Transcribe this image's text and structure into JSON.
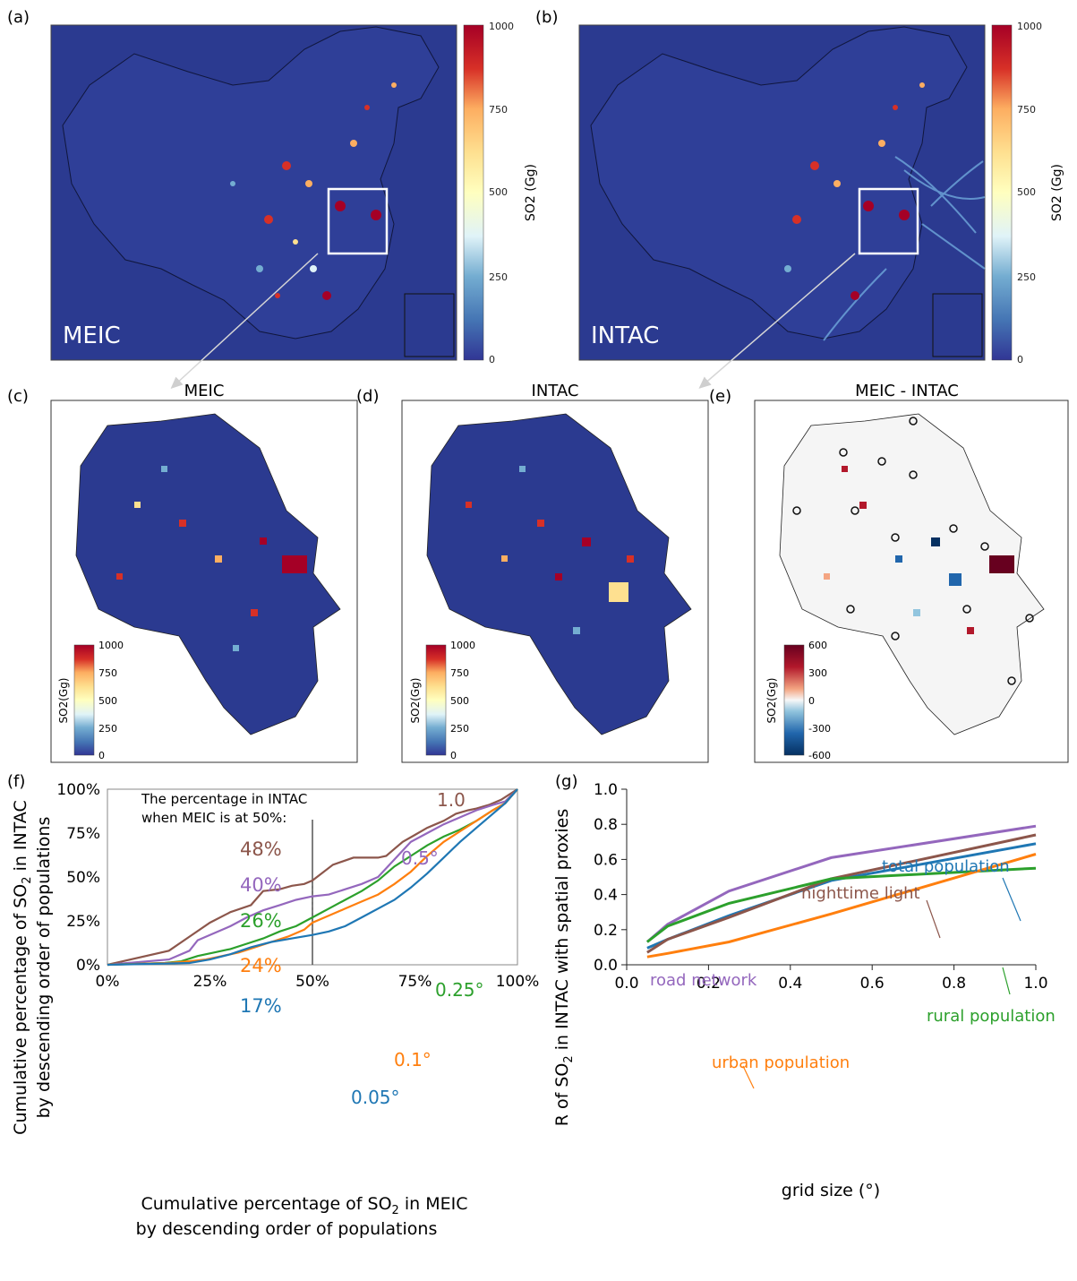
{
  "panels": {
    "a": {
      "tag": "(a)",
      "label": "MEIC"
    },
    "b": {
      "tag": "(b)",
      "label": "INTAC"
    },
    "c": {
      "tag": "(c)",
      "title": "MEIC"
    },
    "d": {
      "tag": "(d)",
      "title": "INTAC"
    },
    "e": {
      "tag": "(e)",
      "title": "MEIC - INTAC"
    },
    "f": {
      "tag": "(f)"
    },
    "g": {
      "tag": "(g)"
    }
  },
  "colorbars": {
    "map": {
      "label": "SO2 (Gg)",
      "ticks": [
        "1000",
        "750",
        "500",
        "250",
        "0"
      ]
    },
    "zoom": {
      "label": "SO2(Gg)",
      "ticks": [
        "1000",
        "750",
        "500",
        "250",
        "0"
      ]
    },
    "diff": {
      "label": "SO2(Gg)",
      "ticks": [
        "600",
        "300",
        "0",
        "-300",
        "-600"
      ]
    }
  },
  "colors": {
    "map_bg": "#2b3a90",
    "cmap_low": "#313695",
    "cmap_high": "#a50026",
    "res_1": "#8c564b",
    "res_05": "#9467bd",
    "res_025": "#2ca02c",
    "res_01": "#ff7f0e",
    "res_005": "#1f77b4"
  },
  "chart_data": [
    {
      "id": "f",
      "type": "line",
      "title": "",
      "xlabel": "Cumulative percentage of SO2 in MEIC by descending order of populations",
      "ylabel": "Cumulative percentage of SO2 in INTAC by descending order of populations",
      "xlim": [
        0,
        100
      ],
      "ylim": [
        0,
        100
      ],
      "xticks": [
        "0%",
        "25%",
        "50%",
        "75%",
        "100%"
      ],
      "yticks": [
        "0%",
        "25%",
        "50%",
        "75%",
        "100%"
      ],
      "annotation_title": [
        "The percentage in INTAC",
        "when MEIC is at 50%:"
      ],
      "annotation_values": [
        "48%",
        "40%",
        "26%",
        "24%",
        "17%"
      ],
      "series": [
        {
          "name": "1.0",
          "color": "#8c564b",
          "x": [
            0,
            15,
            20,
            25,
            30,
            35,
            38,
            42,
            45,
            48,
            50,
            55,
            60,
            62,
            66,
            68,
            70,
            72,
            75,
            78,
            80,
            82,
            85,
            88,
            90,
            93,
            96,
            100
          ],
          "y": [
            0,
            8,
            16,
            24,
            30,
            34,
            42,
            43,
            45,
            46,
            48,
            57,
            61,
            61,
            61,
            62,
            66,
            70,
            74,
            78,
            80,
            82,
            86,
            88,
            89,
            91,
            94,
            100
          ]
        },
        {
          "name": "0.5°",
          "color": "#9467bd",
          "x": [
            0,
            15,
            20,
            22,
            26,
            30,
            34,
            38,
            42,
            46,
            50,
            54,
            58,
            62,
            66,
            70,
            74,
            78,
            82,
            86,
            90,
            94,
            97,
            100
          ],
          "y": [
            0,
            3,
            8,
            14,
            18,
            22,
            27,
            31,
            34,
            37,
            39,
            40,
            43,
            46,
            50,
            60,
            70,
            75,
            80,
            84,
            88,
            91,
            93,
            100
          ]
        },
        {
          "name": "0.25°",
          "color": "#2ca02c",
          "x": [
            0,
            14,
            18,
            22,
            26,
            30,
            34,
            38,
            42,
            46,
            50,
            54,
            58,
            62,
            66,
            70,
            74,
            78,
            82,
            86,
            90,
            94,
            97,
            100
          ],
          "y": [
            0,
            1,
            2,
            5,
            7,
            9,
            12,
            15,
            19,
            22,
            27,
            32,
            37,
            42,
            48,
            56,
            62,
            68,
            73,
            77,
            82,
            88,
            92,
            100
          ]
        },
        {
          "name": "0.1°",
          "color": "#ff7f0e",
          "x": [
            0,
            15,
            20,
            24,
            28,
            32,
            36,
            40,
            44,
            48,
            50,
            54,
            58,
            62,
            66,
            70,
            74,
            78,
            82,
            86,
            90,
            94,
            97,
            100
          ],
          "y": [
            0,
            1,
            2,
            3,
            5,
            7,
            10,
            13,
            16,
            20,
            24,
            28,
            32,
            36,
            40,
            46,
            53,
            62,
            70,
            76,
            82,
            88,
            92,
            100
          ]
        },
        {
          "name": "0.05°",
          "color": "#1f77b4",
          "x": [
            0,
            20,
            25,
            30,
            35,
            40,
            45,
            50,
            54,
            58,
            62,
            66,
            70,
            74,
            78,
            82,
            86,
            90,
            94,
            97,
            100
          ],
          "y": [
            0,
            1,
            3,
            6,
            10,
            13,
            15,
            17,
            19,
            22,
            27,
            32,
            37,
            44,
            52,
            61,
            70,
            78,
            86,
            92,
            100
          ]
        }
      ]
    },
    {
      "id": "g",
      "type": "line",
      "title": "",
      "xlabel": "grid size (°)",
      "ylabel": "R of SO2 in INTAC with spatial proxies",
      "xlim": [
        0,
        1
      ],
      "ylim": [
        0,
        1
      ],
      "xticks": [
        "0.0",
        "0.2",
        "0.4",
        "0.6",
        "0.8",
        "1.0"
      ],
      "yticks": [
        "0.0",
        "0.2",
        "0.4",
        "0.6",
        "0.8",
        "1.0"
      ],
      "x": [
        0.05,
        0.1,
        0.25,
        0.5,
        1.0
      ],
      "series": [
        {
          "name": "road network",
          "color": "#9467bd",
          "values": [
            0.13,
            0.23,
            0.42,
            0.61,
            0.79
          ]
        },
        {
          "name": "total population",
          "color": "#1f77b4",
          "values": [
            0.095,
            0.145,
            0.28,
            0.48,
            0.69
          ]
        },
        {
          "name": "nighttime light",
          "color": "#8c564b",
          "values": [
            0.07,
            0.145,
            0.27,
            0.49,
            0.74
          ]
        },
        {
          "name": "rural population",
          "color": "#2ca02c",
          "values": [
            0.13,
            0.22,
            0.35,
            0.49,
            0.55
          ]
        },
        {
          "name": "urban population",
          "color": "#ff7f0e",
          "values": [
            0.045,
            0.065,
            0.13,
            0.29,
            0.63
          ]
        }
      ]
    }
  ]
}
